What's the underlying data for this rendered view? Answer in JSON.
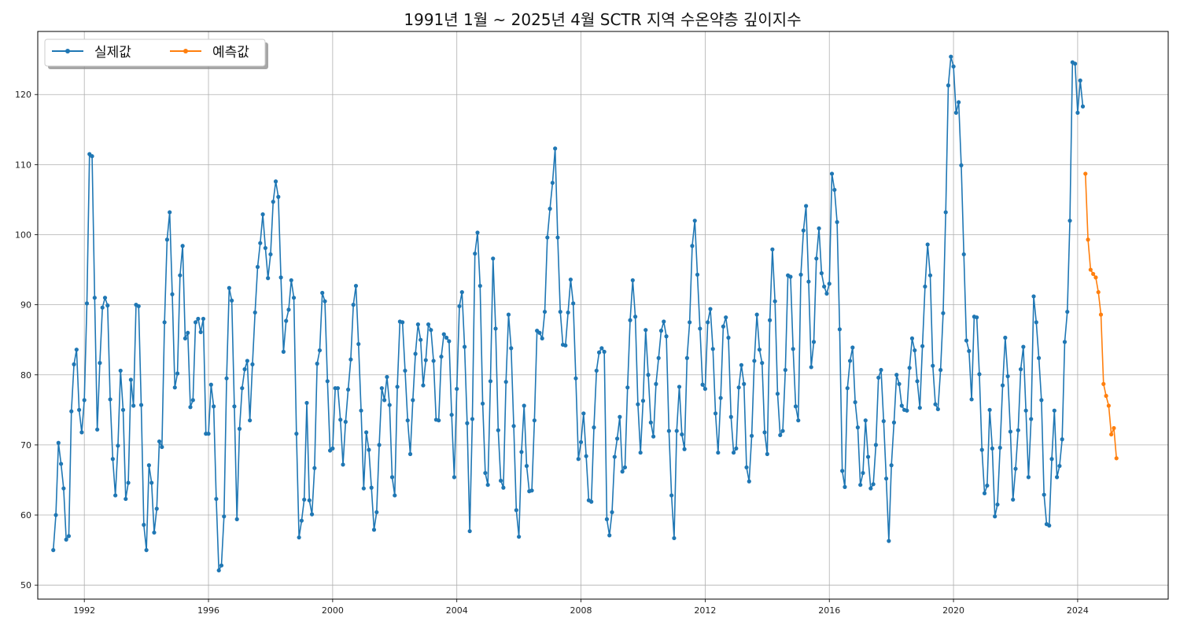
{
  "chart_data": {
    "type": "line",
    "title": "1991년 1월 ~ 2025년 4월 SCTR 지역 수온약층 깊이지수",
    "xlabel": "",
    "ylabel": "",
    "x_axis": {
      "type": "date",
      "min": "1990-07",
      "max": "2026-12",
      "ticks": [
        "1992",
        "1996",
        "2000",
        "2004",
        "2008",
        "2012",
        "2016",
        "2020",
        "2024"
      ]
    },
    "y_axis": {
      "min": 48,
      "max": 129,
      "ticks": [
        50,
        60,
        70,
        80,
        90,
        100,
        110,
        120
      ]
    },
    "grid": true,
    "legend": {
      "position": "top-left",
      "columns": 2
    },
    "series": [
      {
        "name": "실제값",
        "color": "#1f77b4",
        "x_start": "1991-01",
        "frequency": "monthly",
        "values": [
          55.0,
          60.0,
          70.3,
          67.3,
          63.8,
          56.5,
          57.0,
          74.8,
          81.5,
          83.6,
          75.0,
          71.8,
          76.4,
          90.2,
          111.5,
          111.2,
          91.0,
          72.2,
          81.7,
          89.6,
          91.0,
          89.9,
          76.5,
          68.0,
          62.8,
          69.9,
          80.6,
          75.0,
          62.3,
          64.6,
          79.3,
          75.6,
          90.0,
          89.8,
          75.7,
          58.6,
          55.0,
          67.1,
          64.6,
          57.5,
          60.9,
          70.5,
          69.7,
          87.5,
          99.3,
          103.2,
          91.5,
          78.2,
          80.2,
          94.2,
          98.4,
          85.2,
          86.0,
          75.4,
          76.4,
          87.5,
          88.0,
          86.1,
          88.0,
          71.6,
          71.6,
          78.6,
          75.5,
          62.3,
          52.1,
          52.8,
          59.8,
          79.5,
          92.4,
          90.6,
          75.5,
          59.4,
          72.3,
          78.1,
          80.8,
          82.0,
          73.5,
          81.5,
          88.9,
          95.4,
          98.8,
          102.9,
          98.1,
          93.8,
          97.2,
          104.7,
          107.6,
          105.4,
          93.9,
          83.3,
          87.7,
          89.3,
          93.5,
          91.0,
          71.6,
          56.8,
          59.2,
          62.2,
          76.0,
          62.1,
          60.1,
          66.7,
          81.6,
          83.5,
          91.7,
          90.5,
          79.1,
          69.2,
          69.5,
          78.1,
          78.1,
          73.6,
          67.2,
          73.3,
          77.9,
          82.2,
          90.0,
          92.7,
          84.4,
          74.9,
          63.8,
          71.8,
          69.3,
          63.9,
          57.9,
          60.4,
          70.0,
          78.1,
          76.4,
          79.7,
          75.7,
          65.4,
          62.8,
          78.3,
          87.6,
          87.5,
          80.6,
          73.5,
          68.7,
          76.4,
          83.0,
          87.2,
          85.0,
          78.5,
          82.1,
          87.2,
          86.4,
          82.0,
          73.6,
          73.5,
          82.6,
          85.8,
          85.3,
          84.8,
          74.3,
          65.4,
          78.0,
          89.8,
          91.8,
          84.0,
          73.1,
          57.7,
          73.7,
          97.3,
          100.3,
          92.7,
          75.9,
          66.0,
          64.3,
          79.1,
          96.6,
          86.6,
          72.1,
          64.9,
          63.9,
          79.0,
          88.6,
          83.8,
          72.7,
          60.7,
          56.9,
          69.0,
          75.6,
          67.0,
          63.4,
          63.5,
          73.5,
          86.3,
          86.0,
          85.2,
          89.0,
          99.6,
          103.7,
          107.4,
          112.3,
          99.6,
          89.0,
          84.3,
          84.2,
          88.9,
          93.6,
          90.2,
          79.5,
          68.0,
          70.4,
          74.5,
          68.4,
          62.1,
          61.9,
          72.5,
          80.6,
          83.2,
          83.8,
          83.3,
          59.4,
          57.1,
          60.4,
          68.3,
          70.9,
          74.0,
          66.2,
          66.8,
          78.2,
          87.8,
          93.5,
          88.3,
          75.8,
          68.9,
          76.3,
          86.4,
          80.0,
          73.2,
          71.2,
          78.7,
          82.4,
          86.3,
          87.6,
          85.5,
          72.0,
          62.8,
          56.7,
          72.0,
          78.3,
          71.5,
          69.4,
          82.4,
          87.5,
          98.4,
          102.0,
          94.3,
          86.6,
          78.6,
          78.0,
          87.5,
          89.4,
          83.7,
          74.5,
          68.9,
          76.7,
          86.9,
          88.2,
          85.3,
          74.0,
          68.9,
          69.5,
          78.2,
          81.4,
          78.7,
          66.8,
          64.8,
          71.3,
          82.0,
          88.6,
          83.6,
          81.7,
          71.8,
          68.7,
          87.8,
          97.9,
          90.5,
          77.3,
          71.4,
          72.0,
          80.7,
          94.2,
          94.0,
          83.7,
          75.5,
          73.5,
          94.3,
          100.6,
          104.1,
          93.3,
          81.1,
          84.7,
          96.6,
          100.9,
          94.5,
          92.6,
          91.6,
          93.0,
          108.7,
          106.4,
          101.8,
          86.5,
          66.3,
          64.0,
          78.1,
          82.0,
          83.9,
          76.1,
          72.5,
          64.3,
          66.0,
          73.5,
          68.3,
          63.8,
          64.4,
          70.0,
          79.6,
          80.7,
          73.4,
          65.2,
          56.3,
          67.1,
          73.2,
          80.0,
          78.7,
          75.6,
          75.0,
          74.9,
          81.0,
          85.2,
          83.5,
          79.1,
          75.3,
          84.1,
          92.6,
          98.6,
          94.2,
          81.3,
          75.8,
          75.1,
          80.7,
          88.8,
          103.2,
          121.3,
          125.4,
          124.0,
          117.4,
          118.9,
          109.9,
          97.2,
          84.9,
          83.4,
          76.5,
          88.3,
          88.2,
          80.1,
          69.3,
          63.1,
          64.2,
          75.0,
          69.5,
          59.8,
          61.5,
          69.6,
          78.5,
          85.3,
          79.8,
          71.9,
          62.2,
          66.6,
          72.1,
          80.8,
          84.0,
          74.9,
          65.4,
          73.7,
          91.2,
          87.5,
          82.4,
          76.4,
          62.9,
          58.7,
          58.5,
          68.0,
          74.9,
          65.4,
          67.0,
          70.8,
          84.7,
          89.0,
          102.0,
          124.6,
          124.4,
          117.4,
          122.0,
          118.3
        ]
      },
      {
        "name": "예측값",
        "color": "#ff7f0e",
        "x_start": "2024-04",
        "frequency": "monthly",
        "values": [
          108.7,
          99.3,
          95.0,
          94.4,
          93.9,
          91.8,
          88.6,
          78.7,
          77.0,
          75.6,
          71.5,
          72.4,
          68.1
        ]
      }
    ]
  }
}
